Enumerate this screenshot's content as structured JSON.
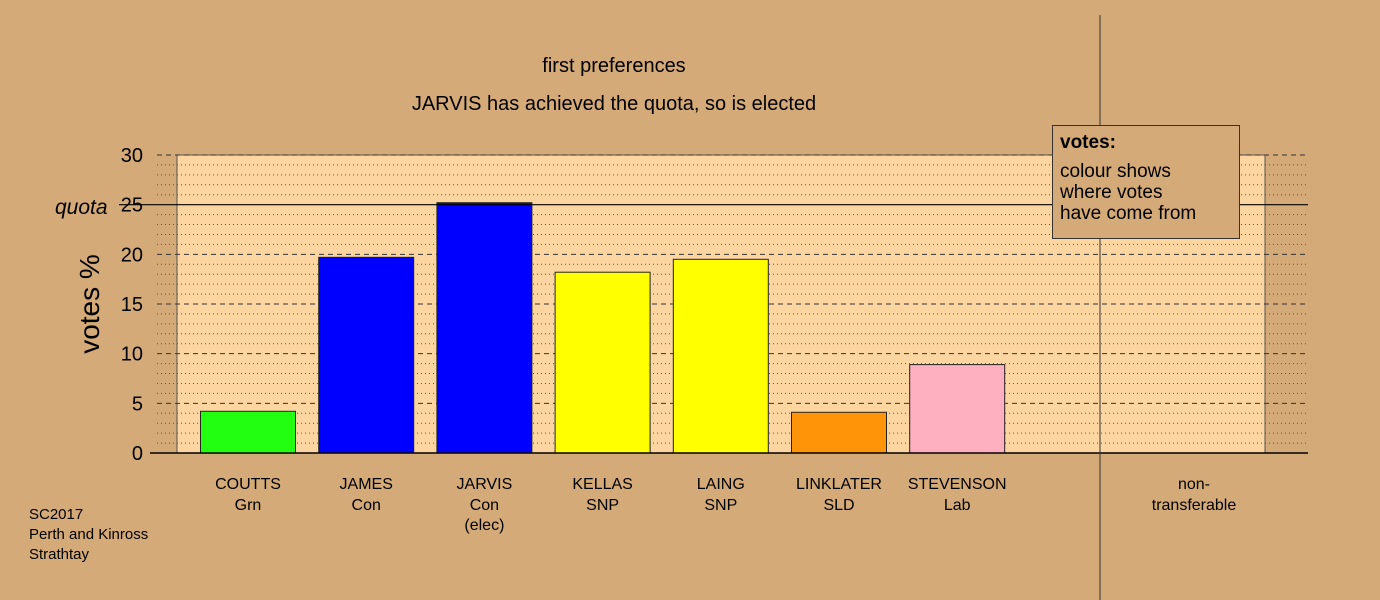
{
  "chart_data": {
    "type": "bar",
    "title": "first preferences",
    "subtitle": "JARVIS has achieved the quota, so is elected",
    "ylabel": "votes %",
    "ylim": [
      0,
      30
    ],
    "yticks": [
      0,
      5,
      10,
      15,
      20,
      25,
      30
    ],
    "quota": 25,
    "quota_label": "quota",
    "grid": true,
    "categories": [
      {
        "name": "COUTTS",
        "party": "Grn",
        "note": "",
        "value": 4.2,
        "color": "#22ff11"
      },
      {
        "name": "JAMES",
        "party": "Con",
        "note": "",
        "value": 19.7,
        "color": "#0000ff"
      },
      {
        "name": "JARVIS",
        "party": "Con",
        "note": "(elec)",
        "value": 25.2,
        "color": "#0000ff"
      },
      {
        "name": "KELLAS",
        "party": "SNP",
        "note": "",
        "value": 18.2,
        "color": "#ffff00"
      },
      {
        "name": "LAING",
        "party": "SNP",
        "note": "",
        "value": 19.5,
        "color": "#ffff00"
      },
      {
        "name": "LINKLATER",
        "party": "SLD",
        "note": "",
        "value": 4.1,
        "color": "#ff9408"
      },
      {
        "name": "STEVENSON",
        "party": "Lab",
        "note": "",
        "value": 8.9,
        "color": "#ffb0c0"
      }
    ],
    "non_transferable": {
      "label_line1": "non-",
      "label_line2": "transferable",
      "value": 0
    }
  },
  "legend": {
    "title": "votes:",
    "lines": [
      "colour shows",
      "where votes",
      "have come from"
    ]
  },
  "footer": {
    "line1": "SC2017",
    "line2": "Perth and Kinross",
    "line3": "Strathtay"
  },
  "colors": {
    "background": "#d4aa78",
    "plot_area": "#fcd5a0"
  }
}
